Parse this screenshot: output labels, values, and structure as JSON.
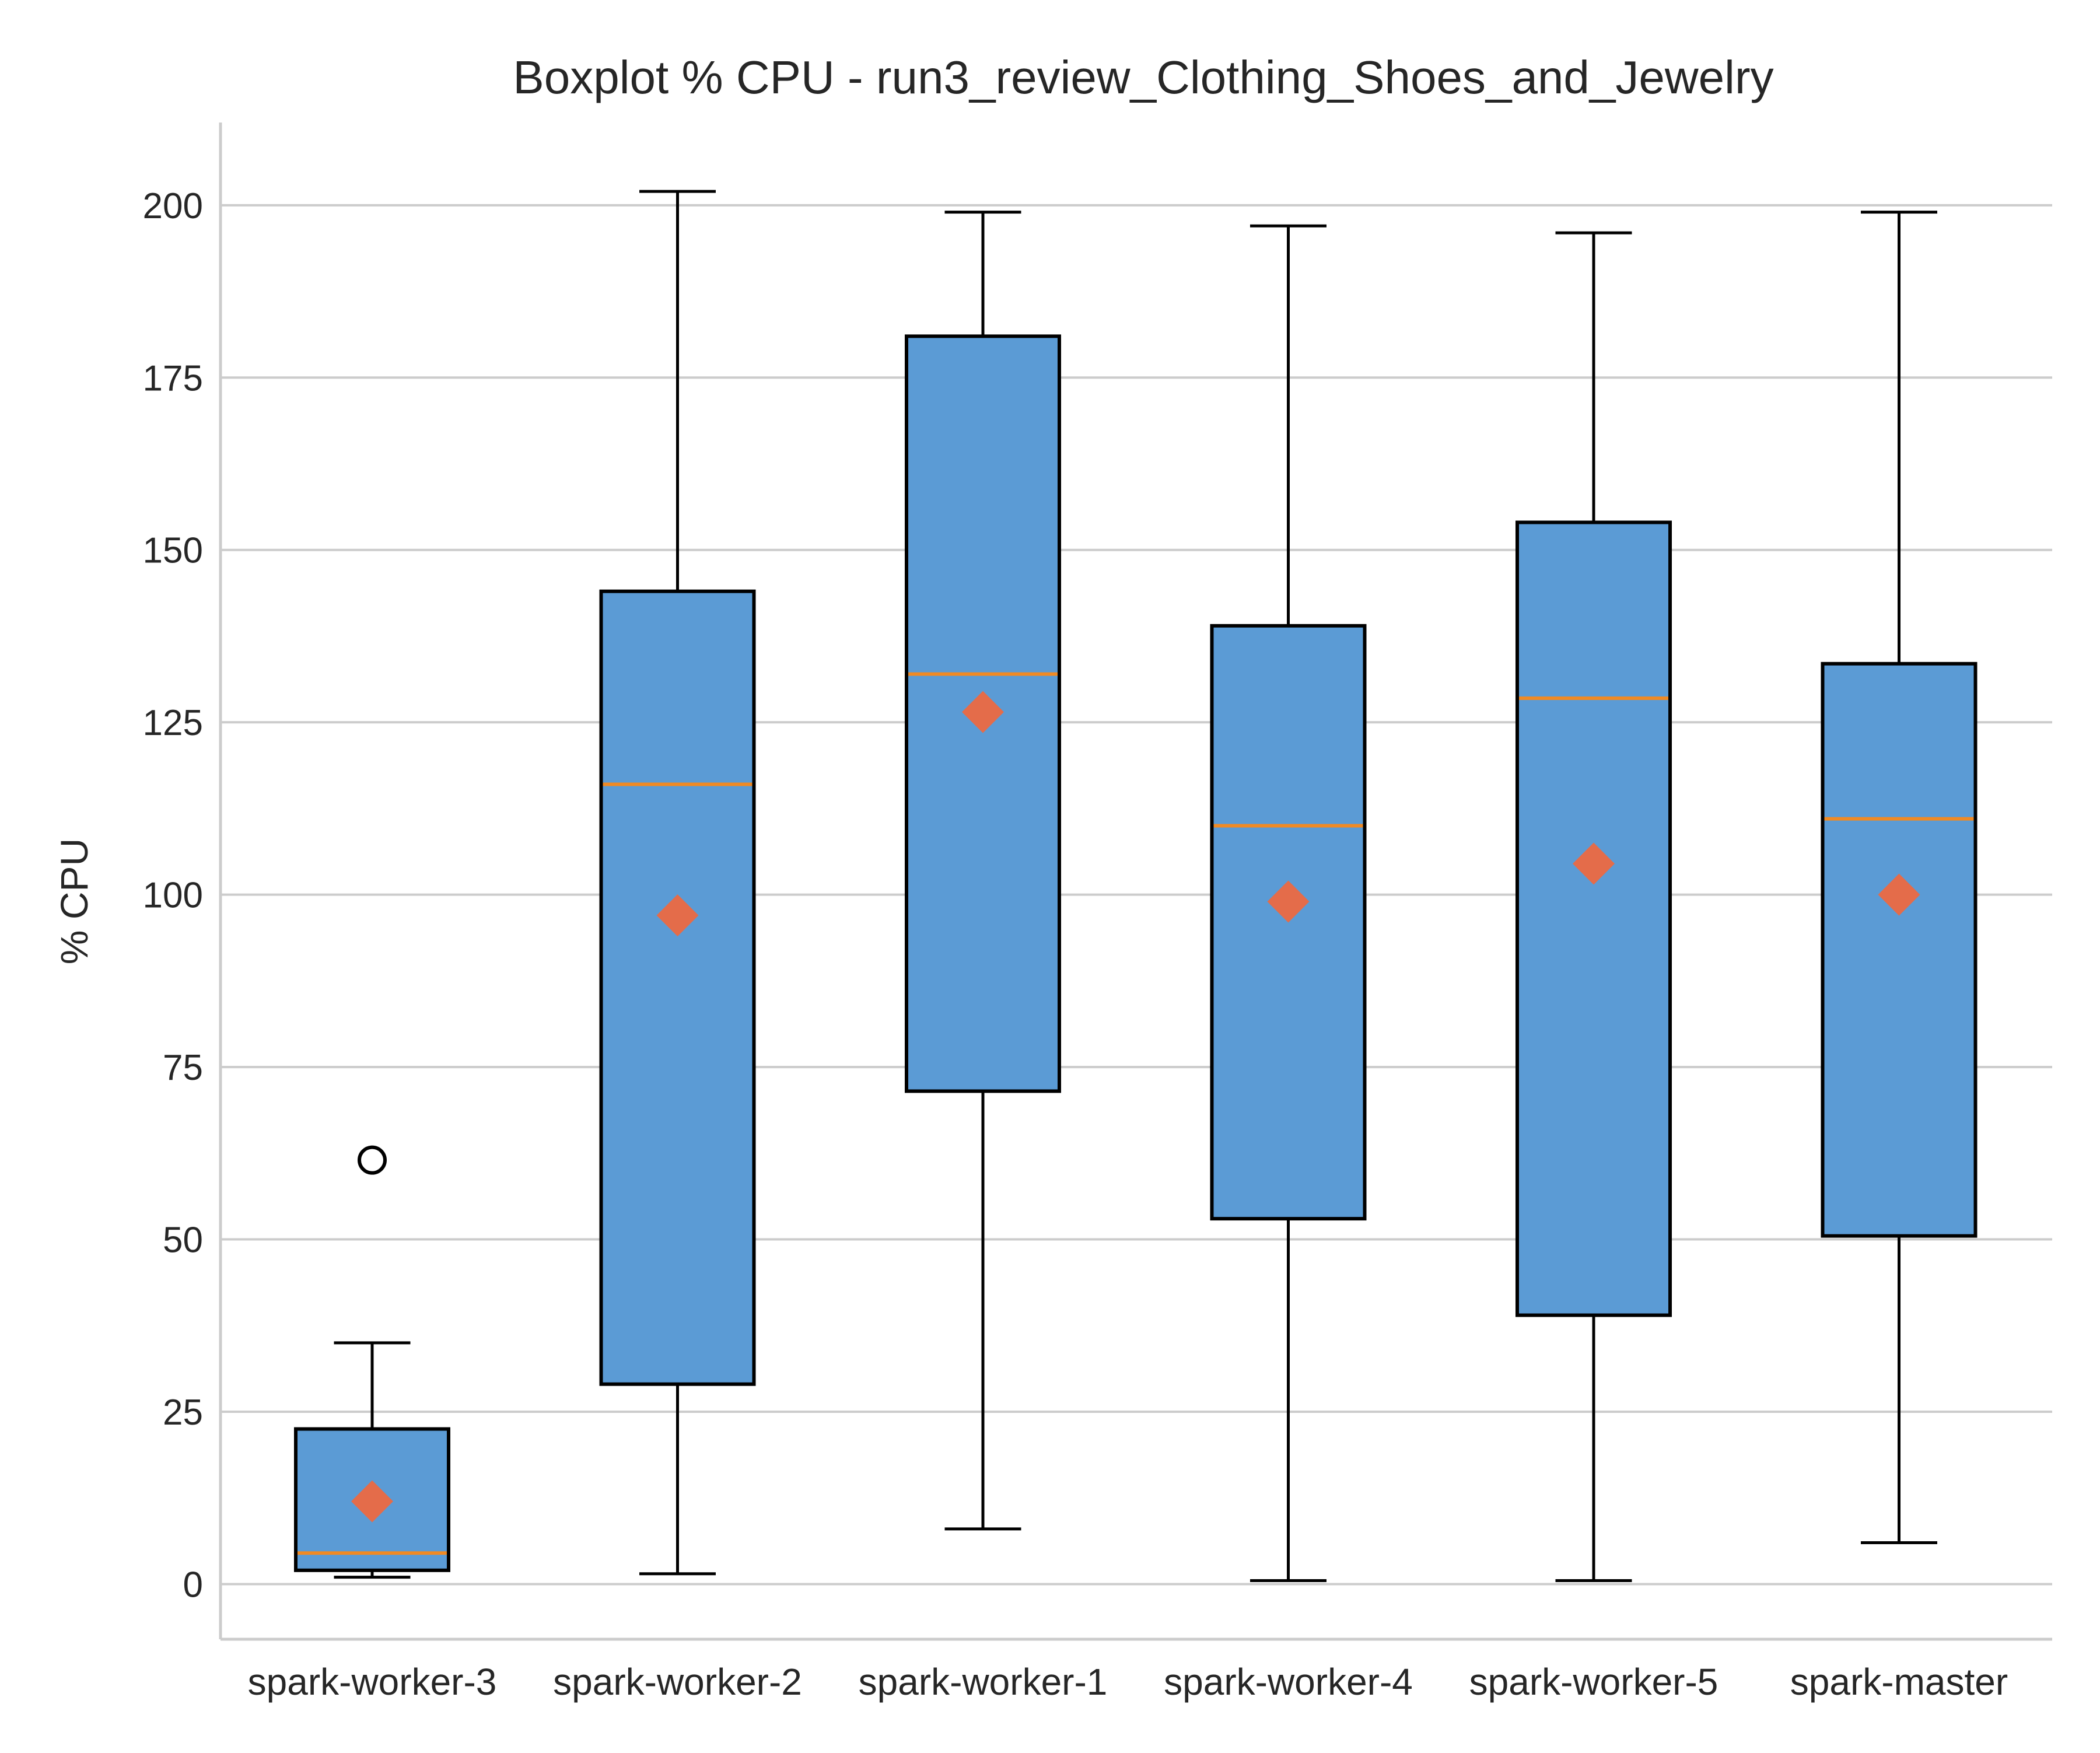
{
  "chart_data": {
    "type": "box",
    "title": "Boxplot % CPU - run3_review_Clothing_Shoes_and_Jewelry",
    "xlabel": "",
    "ylabel": "% CPU",
    "ylim": [
      -8,
      212
    ],
    "yticks": [
      0,
      25,
      50,
      75,
      100,
      125,
      150,
      175,
      200
    ],
    "grid": "horizontal",
    "categories": [
      "spark-worker-3",
      "spark-worker-2",
      "spark-worker-1",
      "spark-worker-4",
      "spark-worker-5",
      "spark-master"
    ],
    "boxes": [
      {
        "whisker_low": 1,
        "q1": 2,
        "median": 4.5,
        "q3": 22.5,
        "whisker_high": 35,
        "mean": 12,
        "outliers": [
          61.5
        ]
      },
      {
        "whisker_low": 1.5,
        "q1": 29,
        "median": 116,
        "q3": 144,
        "whisker_high": 202,
        "mean": 97,
        "outliers": []
      },
      {
        "whisker_low": 8,
        "q1": 71.5,
        "median": 132,
        "q3": 181,
        "whisker_high": 199,
        "mean": 126.5,
        "outliers": []
      },
      {
        "whisker_low": 0.5,
        "q1": 53,
        "median": 110,
        "q3": 139,
        "whisker_high": 197,
        "mean": 99,
        "outliers": []
      },
      {
        "whisker_low": 0.5,
        "q1": 39,
        "median": 128.5,
        "q3": 154,
        "whisker_high": 196,
        "mean": 104.5,
        "outliers": []
      },
      {
        "whisker_low": 6,
        "q1": 50.5,
        "median": 111,
        "q3": 133.5,
        "whisker_high": 199,
        "mean": 100,
        "outliers": []
      }
    ],
    "colors": {
      "box_fill": "#5b9bd5",
      "box_edge": "#000000",
      "median": "#f08a24",
      "mean_marker": "#e46c4a",
      "grid": "#cccccc",
      "axis": "#cccccc"
    }
  }
}
